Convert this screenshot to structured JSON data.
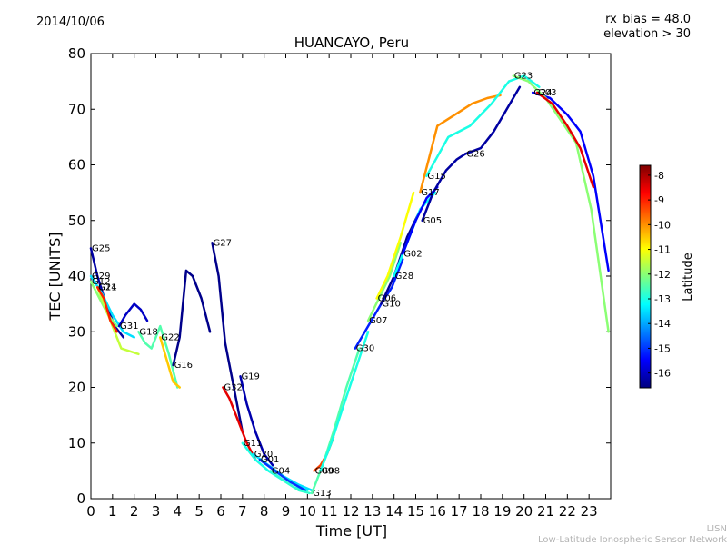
{
  "header": {
    "date": "2014/10/06",
    "rx_bias": "rx_bias = 48.0",
    "elevation": "elevation > 30"
  },
  "footer": {
    "line1": "LISN",
    "line2": "Low-Latitude Ionospheric Sensor Network"
  },
  "chart_data": {
    "type": "line",
    "title": "HUANCAYO, Peru",
    "xlabel": "Time [UT]",
    "ylabel": "TEC [UNITS]",
    "xlim": [
      0,
      24
    ],
    "ylim": [
      0,
      80
    ],
    "xticks": [
      0,
      1,
      2,
      3,
      4,
      5,
      6,
      7,
      8,
      9,
      10,
      11,
      12,
      13,
      14,
      15,
      16,
      17,
      18,
      19,
      20,
      21,
      22,
      23
    ],
    "yticks": [
      0,
      10,
      20,
      30,
      40,
      50,
      60,
      70,
      80
    ],
    "colorbar": {
      "label": "Latitude",
      "range": [
        -16.6,
        -7.6
      ],
      "ticks": [
        -8,
        -9,
        -10,
        -11,
        -12,
        -13,
        -14,
        -15,
        -16
      ],
      "colormap": "jet",
      "colors": [
        "#00007f",
        "#0000ff",
        "#007fff",
        "#00ffff",
        "#7fff7f",
        "#ffff00",
        "#ff7f00",
        "#ff0000",
        "#7f0000"
      ]
    },
    "series": [
      {
        "name": "G25",
        "lat": -16.3,
        "x": [
          0,
          0.3,
          0.7,
          1.1,
          1.5
        ],
        "y": [
          45,
          40,
          35,
          31,
          29
        ]
      },
      {
        "name": "G29",
        "lat": -13.5,
        "x": [
          0,
          0.5,
          1,
          1.5,
          2
        ],
        "y": [
          40,
          37,
          33,
          30,
          29
        ]
      },
      {
        "name": "G12",
        "lat": -12.0,
        "x": [
          0,
          0.4,
          0.8,
          1.2
        ],
        "y": [
          39,
          36,
          33,
          31
        ]
      },
      {
        "name": "G14",
        "lat": -11.5,
        "x": [
          0.3,
          0.7,
          1.1,
          1.4,
          2.2
        ],
        "y": [
          38,
          34,
          30,
          27,
          26
        ]
      },
      {
        "name": "G21",
        "lat": -9.0,
        "x": [
          0.3,
          0.6,
          0.9,
          1.2
        ],
        "y": [
          38,
          36,
          32,
          30
        ]
      },
      {
        "name": "G31",
        "lat": -16.0,
        "x": [
          1.3,
          1.6,
          2,
          2.3,
          2.6
        ],
        "y": [
          31,
          33,
          35,
          34,
          32
        ]
      },
      {
        "name": "G18",
        "lat": -12.5,
        "x": [
          2.2,
          2.5,
          2.8,
          3.2,
          3.6,
          4
        ],
        "y": [
          30,
          28,
          27,
          31,
          26,
          20
        ]
      },
      {
        "name": "G22",
        "lat": -10.5,
        "x": [
          3.2,
          3.5,
          3.8,
          4.1
        ],
        "y": [
          29,
          25,
          21,
          20
        ]
      },
      {
        "name": "G16",
        "lat": -16.5,
        "x": [
          3.8,
          4.1,
          4.4,
          4.7,
          5.1,
          5.5
        ],
        "y": [
          24,
          29,
          41,
          40,
          36,
          30
        ]
      },
      {
        "name": "G27",
        "lat": -16.5,
        "x": [
          5.6,
          5.9,
          6.2,
          6.6,
          7
        ],
        "y": [
          46,
          40,
          28,
          20,
          12
        ]
      },
      {
        "name": "G32",
        "lat": -8.5,
        "x": [
          6.1,
          6.4,
          6.8,
          7.2,
          7.6
        ],
        "y": [
          20,
          18,
          14,
          10,
          7
        ]
      },
      {
        "name": "G19",
        "lat": -16.2,
        "x": [
          6.9,
          7.2,
          7.6,
          8,
          8.4
        ],
        "y": [
          22,
          17,
          12,
          8,
          6
        ]
      },
      {
        "name": "G11",
        "lat": -13.0,
        "x": [
          7,
          7.6,
          8.2,
          8.8,
          9.4,
          10
        ],
        "y": [
          10,
          7,
          5,
          3.5,
          2,
          1.5
        ]
      },
      {
        "name": "G20",
        "lat": -13.5,
        "x": [
          7.5,
          8.2,
          8.9,
          9.6,
          10.2
        ],
        "y": [
          8,
          6,
          4,
          2.5,
          1.5
        ]
      },
      {
        "name": "G01",
        "lat": -15.0,
        "x": [
          7.8,
          8.5,
          9.2,
          9.9
        ],
        "y": [
          7,
          5,
          3,
          1.5
        ]
      },
      {
        "name": "G04",
        "lat": -12.8,
        "x": [
          8.3,
          9,
          9.6,
          10.1
        ],
        "y": [
          5,
          3,
          1.5,
          1
        ]
      },
      {
        "name": "G09",
        "lat": -9.3,
        "x": [
          10.3,
          10.6,
          10.9,
          11.2
        ],
        "y": [
          5,
          6,
          8,
          11
        ]
      },
      {
        "name": "G13",
        "lat": -12.5,
        "x": [
          10.2,
          10.7,
          11.2,
          11.8,
          12.4
        ],
        "y": [
          1,
          6,
          12,
          20,
          27
        ]
      },
      {
        "name": "G08",
        "lat": -13.0,
        "x": [
          10.6,
          11.1,
          11.6,
          12.2,
          12.8
        ],
        "y": [
          5,
          10,
          16,
          23,
          30
        ]
      },
      {
        "name": "G30",
        "lat": -15.2,
        "x": [
          12.2,
          12.8,
          13.4,
          13.9,
          14.4
        ],
        "y": [
          27,
          31,
          35,
          38,
          43
        ]
      },
      {
        "name": "G07",
        "lat": -12.0,
        "x": [
          12.8,
          13.3,
          13.8,
          14.3
        ],
        "y": [
          32,
          36,
          40,
          46
        ]
      },
      {
        "name": "G06",
        "lat": -11.0,
        "x": [
          13.2,
          13.7,
          14.3,
          14.9
        ],
        "y": [
          36,
          40,
          47,
          55
        ]
      },
      {
        "name": "G10",
        "lat": -16.4,
        "x": [
          13.4,
          14,
          14.6,
          15.1
        ],
        "y": [
          35,
          40,
          47,
          51
        ]
      },
      {
        "name": "G28",
        "lat": -13.2,
        "x": [
          14,
          14.6,
          15.2,
          15.9
        ],
        "y": [
          40,
          46,
          52,
          55
        ]
      },
      {
        "name": "G02",
        "lat": -15.5,
        "x": [
          14.4,
          15,
          15.5,
          16
        ],
        "y": [
          44,
          50,
          54,
          56
        ]
      },
      {
        "name": "G05",
        "lat": -16.3,
        "x": [
          15.3,
          15.8,
          16.4,
          16.9,
          17.3
        ],
        "y": [
          50,
          55,
          59,
          61,
          62
        ]
      },
      {
        "name": "G26",
        "lat": -16.3,
        "x": [
          17.3,
          18,
          18.6,
          19.2,
          19.8
        ],
        "y": [
          62,
          63,
          66,
          70,
          74
        ]
      },
      {
        "name": "G17",
        "lat": -10.0,
        "x": [
          15.2,
          16,
          16.8,
          17.6,
          18.3,
          18.9
        ],
        "y": [
          55,
          67,
          69,
          71,
          72,
          72.5
        ]
      },
      {
        "name": "G15",
        "lat": -13.0,
        "x": [
          15.5,
          16.5,
          17.5,
          18.5,
          19.3,
          20,
          20.7
        ],
        "y": [
          58,
          65,
          67,
          71,
          75,
          76,
          74
        ]
      },
      {
        "name": "G24",
        "lat": -15.5,
        "x": [
          20.4,
          21.2,
          22,
          22.6,
          23.2,
          23.9
        ],
        "y": [
          73,
          72,
          69,
          66,
          58,
          41
        ]
      },
      {
        "name": "G23",
        "lat": -12.0,
        "x": [
          19.5,
          20.2,
          21,
          21.7,
          22.4,
          23.1,
          23.9
        ],
        "y": [
          76,
          75,
          72,
          68,
          64,
          52,
          30
        ]
      },
      {
        "name": "G03",
        "lat": -8.5,
        "x": [
          20.6,
          21.3,
          22,
          22.6,
          23.2
        ],
        "y": [
          73,
          71,
          67,
          63,
          56
        ]
      }
    ]
  }
}
